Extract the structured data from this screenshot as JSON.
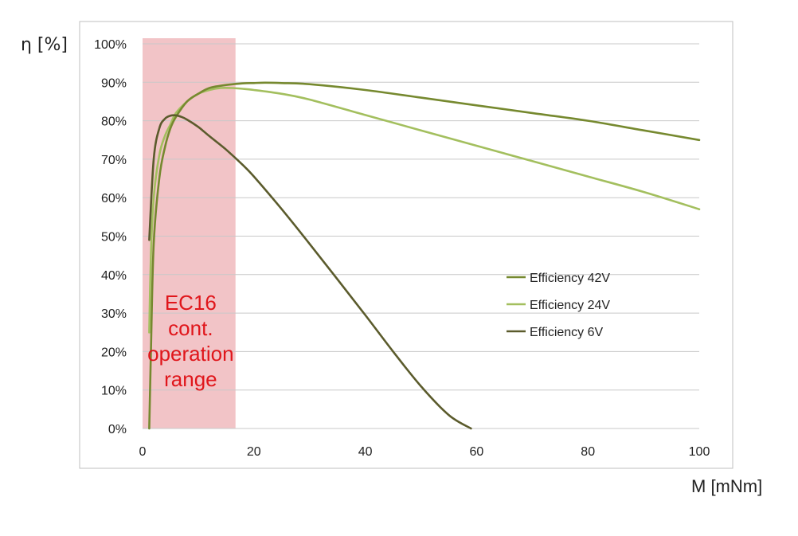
{
  "chart_data": {
    "type": "line",
    "xlabel": "M [mNm]",
    "ylabel": "η [%]",
    "xlim": [
      0,
      100
    ],
    "ylim": [
      0,
      100
    ],
    "x_ticks": [
      "0",
      "20",
      "40",
      "60",
      "80",
      "100"
    ],
    "y_ticks": [
      "0%",
      "10%",
      "20%",
      "30%",
      "40%",
      "50%",
      "60%",
      "70%",
      "80%",
      "90%",
      "100%"
    ],
    "grid": "horizontal",
    "legend_position": "center-right",
    "shaded_region": {
      "x_range": [
        0,
        16.7
      ],
      "label_lines": [
        "EC16",
        "cont.",
        "operation",
        "range"
      ],
      "label_color": "#e0161b",
      "fill_color": "#f2c4c7"
    },
    "series": [
      {
        "name": "Efficiency 42V",
        "color": "#76892f",
        "x": [
          1.2,
          1.5,
          2,
          3,
          4,
          5,
          6,
          8,
          10,
          12,
          15,
          18,
          20,
          22,
          25,
          30,
          40,
          50,
          60,
          70,
          80,
          90,
          100
        ],
        "y": [
          0,
          20,
          48,
          65,
          73,
          78,
          81,
          85,
          87,
          88.5,
          89.3,
          89.7,
          89.8,
          89.9,
          89.8,
          89.5,
          88,
          86,
          84,
          82,
          80,
          77.5,
          75
        ]
      },
      {
        "name": "Efficiency 24V",
        "color": "#a3bf5e",
        "x": [
          1.2,
          1.5,
          2,
          3,
          4,
          5,
          6,
          8,
          10,
          12,
          14,
          16,
          18,
          20,
          25,
          30,
          40,
          50,
          60,
          70,
          80,
          90,
          100
        ],
        "y": [
          25,
          45,
          60,
          71,
          76,
          79,
          82,
          85,
          87,
          88,
          88.5,
          88.5,
          88.3,
          88,
          87,
          85.5,
          81.5,
          77.5,
          73.5,
          69.5,
          65.5,
          61.5,
          57
        ]
      },
      {
        "name": "Efficiency 6V",
        "color": "#5b5b2c",
        "x": [
          1.2,
          2,
          3,
          4,
          5,
          6,
          7,
          8,
          10,
          12,
          15,
          18,
          20,
          25,
          30,
          35,
          40,
          45,
          50,
          55,
          59
        ],
        "y": [
          49,
          70,
          78,
          80.5,
          81.3,
          81.4,
          81,
          80.3,
          78.4,
          76,
          72.5,
          68.5,
          65.5,
          57,
          48,
          38.8,
          29.5,
          20,
          11,
          3.5,
          0
        ]
      }
    ]
  }
}
